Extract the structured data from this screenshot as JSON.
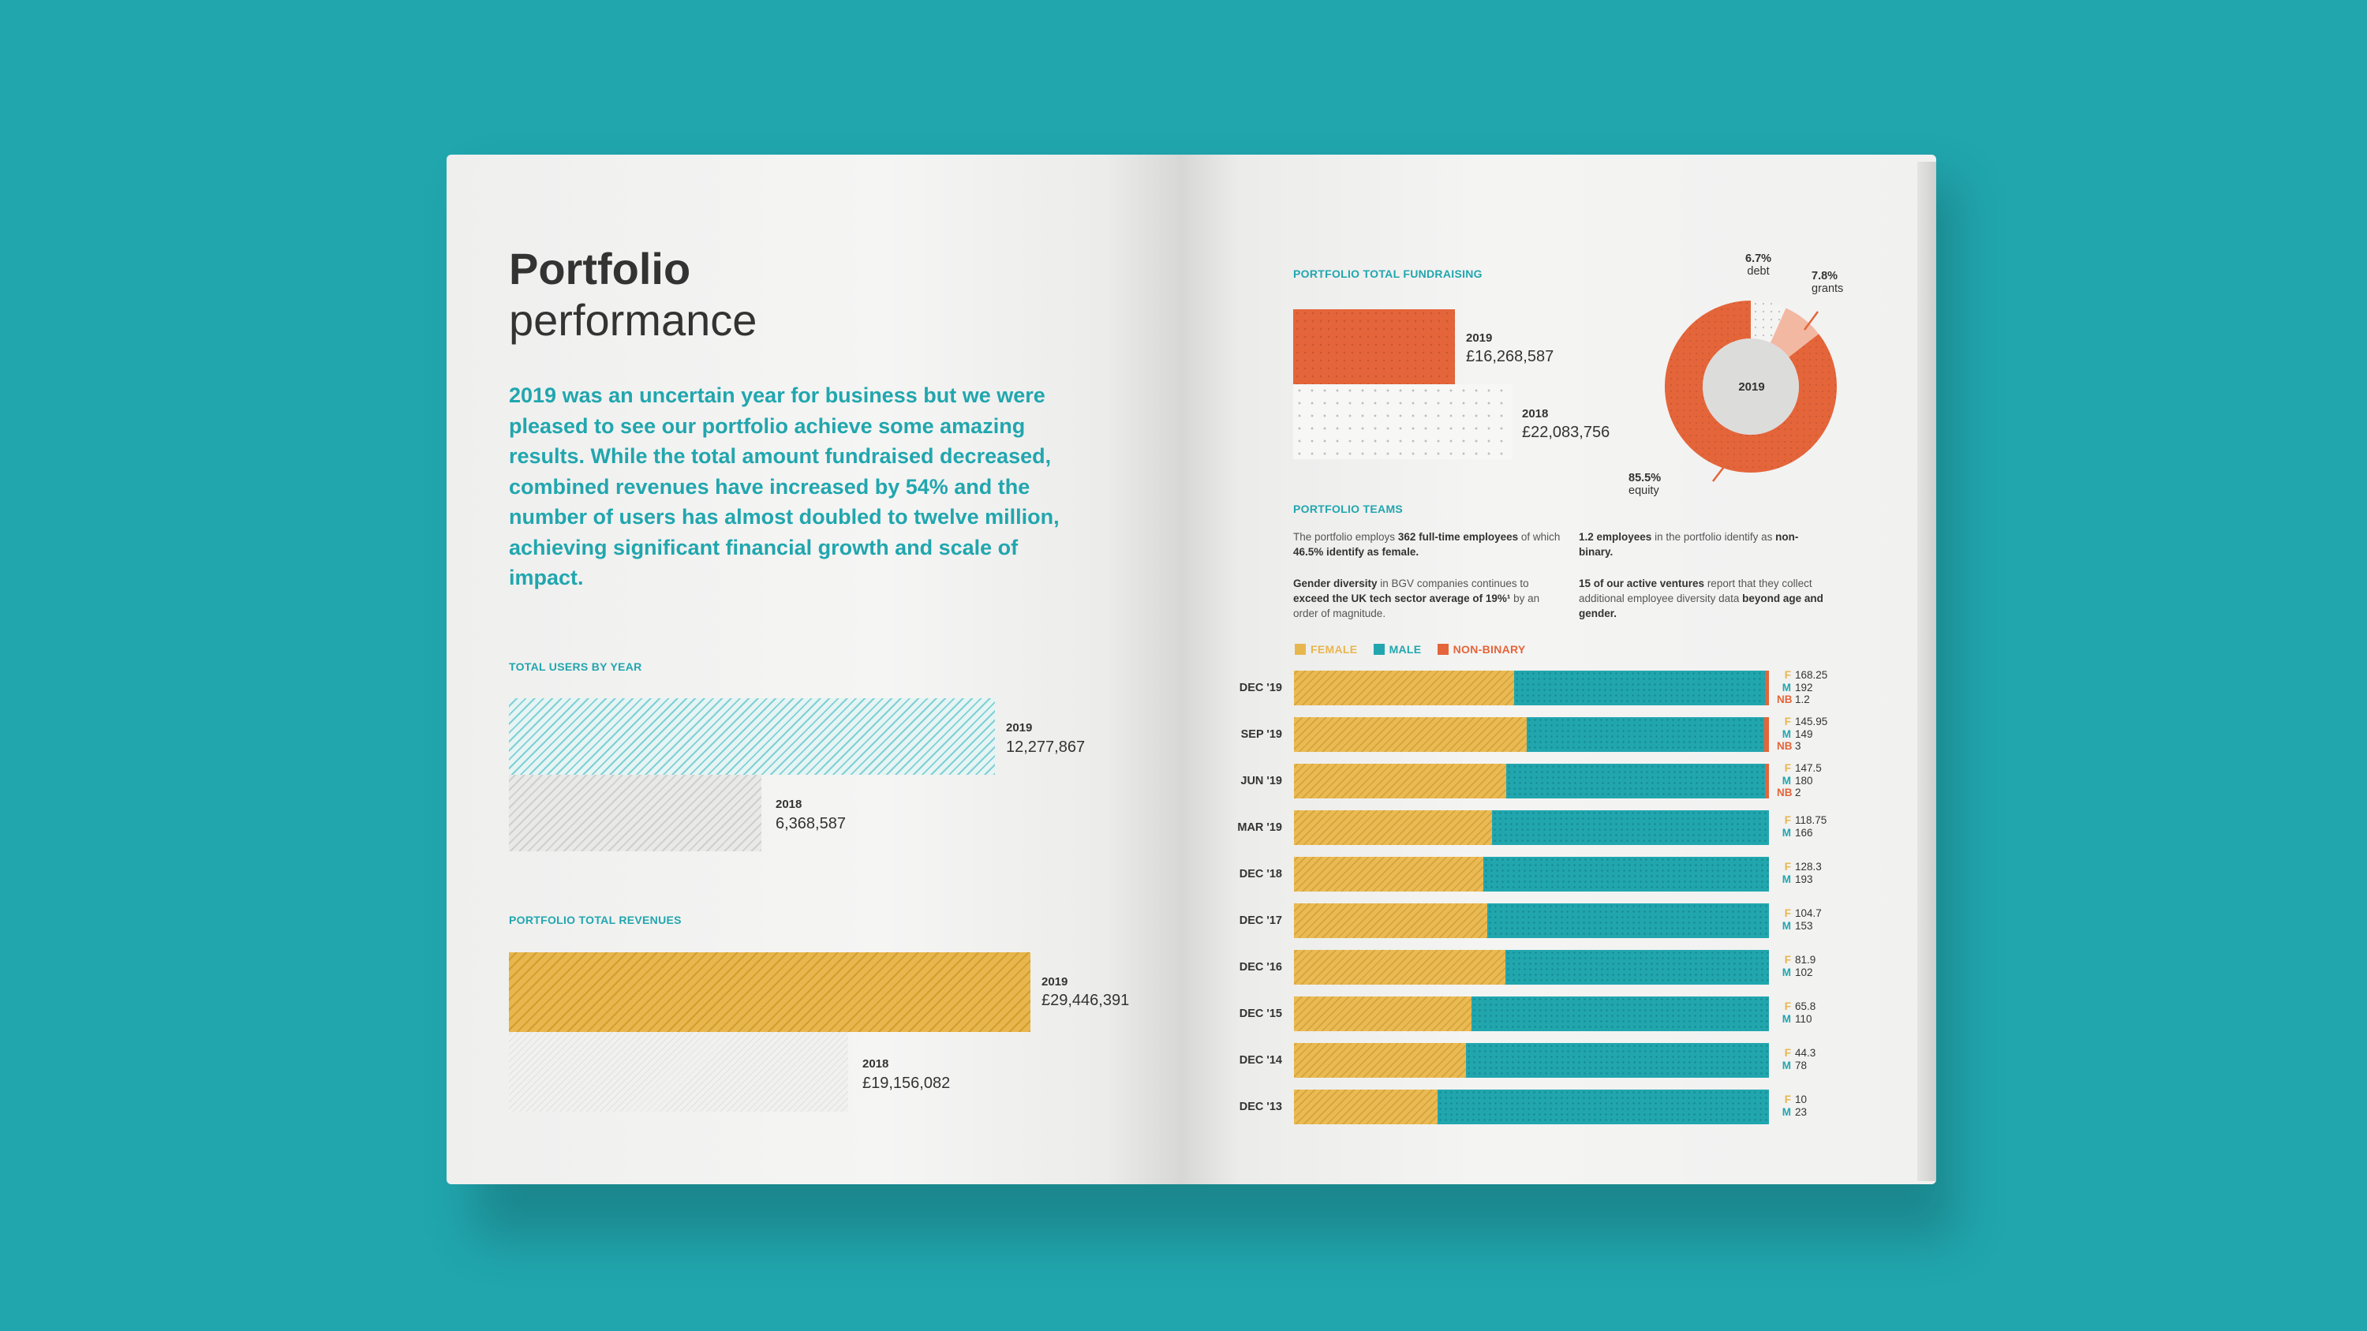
{
  "left_page": {
    "title_bold": "Portfolio",
    "title_light": "performance",
    "intro": "2019 was an uncertain year for business but we were pleased to see our portfolio achieve some amazing results. While the total amount fundraised decreased, combined revenues have increased by 54% and the number of users has almost doubled to twelve million, achieving significant financial growth and scale of impact.",
    "users": {
      "heading": "TOTAL USERS BY YEAR",
      "items": [
        {
          "year": "2019",
          "value": "12,277,867",
          "amount": 12277867
        },
        {
          "year": "2018",
          "value": "6,368,587",
          "amount": 6368587
        }
      ]
    },
    "revenues": {
      "heading": "PORTFOLIO TOTAL REVENUES",
      "items": [
        {
          "year": "2019",
          "value": "£29,446,391",
          "amount": 29446391
        },
        {
          "year": "2018",
          "value": "£19,156,082",
          "amount": 19156082
        }
      ]
    }
  },
  "right_page": {
    "fundraising": {
      "heading": "PORTFOLIO TOTAL FUNDRAISING",
      "items": [
        {
          "year": "2019",
          "value": "£16,268,587",
          "amount": 16268587
        },
        {
          "year": "2018",
          "value": "£22,083,756",
          "amount": 22083756
        }
      ],
      "donut": {
        "center": "2019",
        "slices": [
          {
            "pct": "85.5%",
            "label": "equity",
            "share": 85.5,
            "color": "#e4653a"
          },
          {
            "pct": "6.7%",
            "label": "debt",
            "share": 6.7,
            "color": "#f2f2f1"
          },
          {
            "pct": "7.8%",
            "label": "grants",
            "share": 7.8,
            "color": "#f2b8a2"
          }
        ]
      }
    },
    "teams": {
      "heading": "PORTFOLIO TEAMS",
      "p1": {
        "a": "The portfolio employs ",
        "b": "362 full-time employees",
        "c": " of which ",
        "d": "46.5% identify as female."
      },
      "p2": {
        "a": "1.2 employees",
        "b": " in the portfolio identify as ",
        "c": "non-binary."
      },
      "p3": {
        "a": "Gender diversity",
        "b": " in BGV companies continues to ",
        "c": "exceed the UK tech sector average of 19%¹",
        "d": " by an order of magnitude."
      },
      "p4": {
        "a": "15 of our active ventures",
        "b": " report that they collect additional employee diversity data ",
        "c": "beyond age and gender."
      }
    },
    "legend": {
      "female": "FEMALE",
      "male": "MALE",
      "nonbinary": "NON-BINARY"
    },
    "colors": {
      "female": "#e8b64e",
      "male": "#21a6ae",
      "nonbinary": "#e4653a"
    },
    "gender_chart": {
      "type": "bar",
      "keys": {
        "f": "F",
        "m": "M",
        "nb": "NB"
      },
      "categories": [
        "DEC '19",
        "SEP '19",
        "JUN '19",
        "MAR '19",
        "DEC '18",
        "DEC '17",
        "DEC '16",
        "DEC '15",
        "DEC '14",
        "DEC '13"
      ],
      "series": [
        {
          "name": "Female",
          "values": [
            "168.25",
            "145.95",
            "147.5",
            "118.75",
            "128.3",
            "104.7",
            "81.9",
            "65.8",
            "44.3",
            "10"
          ]
        },
        {
          "name": "Male",
          "values": [
            "192",
            "149",
            "180",
            "166",
            "193",
            "153",
            "102",
            "110",
            "78",
            "23"
          ]
        },
        {
          "name": "Non-binary",
          "values": [
            "1.2",
            "3",
            "2",
            null,
            null,
            null,
            null,
            null,
            null,
            null
          ]
        }
      ]
    }
  }
}
